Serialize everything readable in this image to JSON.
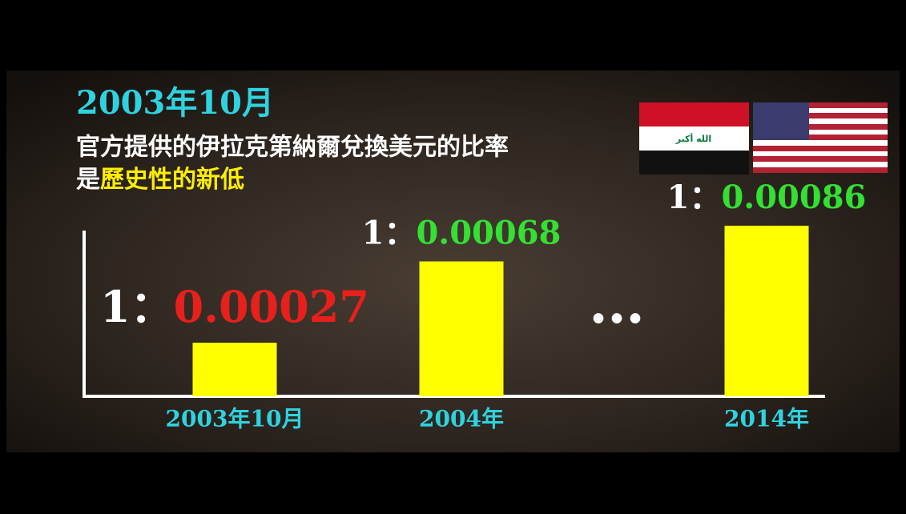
{
  "chart_data": {
    "type": "bar",
    "title": "2003年10月",
    "subtitle_line1": "官方提供的伊拉克第納爾兌換美元的比率",
    "subtitle_line2_prefix": "是",
    "subtitle_line2_highlight": "歷史性的新低",
    "flag_text": "الله أكبر",
    "ratio_prefix": "1：",
    "ellipsis": "•••",
    "categories": [
      "2003年10月",
      "2004年",
      "2014年"
    ],
    "values": [
      0.00027,
      0.00068,
      0.00086
    ],
    "value_label_colors": [
      "#e8201c",
      "#33e033",
      "#33e033"
    ],
    "color": "#ffff00",
    "ylim": [
      0,
      0.0009
    ]
  }
}
